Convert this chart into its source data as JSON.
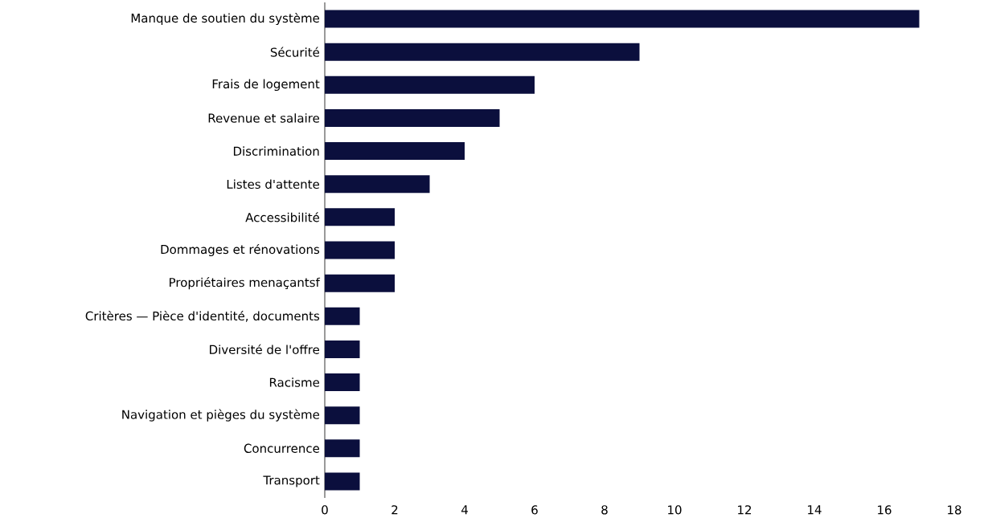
{
  "chart_data": {
    "type": "bar",
    "orientation": "horizontal",
    "color": "#0b0f3d",
    "categories": [
      "Manque de soutien du système",
      "Sécurité",
      "Frais de logement",
      "Revenue et salaire",
      "Discrimination",
      "Listes d'attente",
      "Accessibilité",
      "Dommages et rénovations",
      "Propriétaires menaçantsf",
      "Critères — Pièce d'identité, documents",
      "Diversité de l'offre",
      "Racisme",
      "Navigation et pièges du système",
      "Concurrence",
      "Transport"
    ],
    "values": [
      17,
      9,
      6,
      5,
      4,
      3,
      2,
      2,
      2,
      1,
      1,
      1,
      1,
      1,
      1
    ],
    "xlim": [
      0,
      18
    ],
    "xticks": [
      0,
      2,
      4,
      6,
      8,
      10,
      12,
      14,
      16,
      18
    ],
    "grid": false
  }
}
